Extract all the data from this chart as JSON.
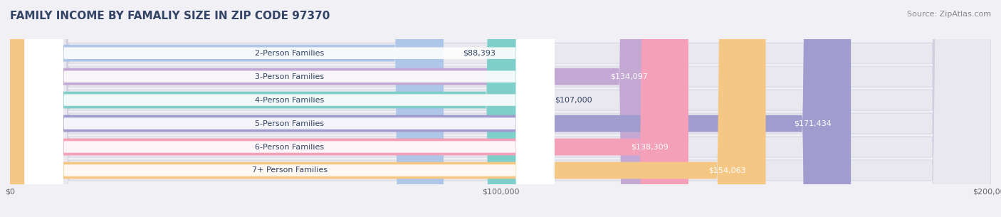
{
  "title": "FAMILY INCOME BY FAMALIY SIZE IN ZIP CODE 97370",
  "source": "Source: ZipAtlas.com",
  "categories": [
    "2-Person Families",
    "3-Person Families",
    "4-Person Families",
    "5-Person Families",
    "6-Person Families",
    "7+ Person Families"
  ],
  "values": [
    88393,
    134097,
    107000,
    171434,
    138309,
    154063
  ],
  "labels": [
    "$88,393",
    "$134,097",
    "$107,000",
    "$171,434",
    "$138,309",
    "$154,063"
  ],
  "bar_colors": [
    "#aec6e8",
    "#c4a8d4",
    "#7ecfca",
    "#a09cce",
    "#f4a0b8",
    "#f5c785"
  ],
  "bar_edge_colors": [
    "#8aa8cc",
    "#a888b8",
    "#5eb0ab",
    "#8080b0",
    "#e07898",
    "#e0a860"
  ],
  "label_colors": [
    "#555577",
    "#ffffff",
    "#555577",
    "#ffffff",
    "#ffffff",
    "#ffffff"
  ],
  "xlim": [
    0,
    200000
  ],
  "xticks": [
    0,
    100000,
    200000
  ],
  "xticklabels": [
    "$0",
    "$100,000",
    "$200,000"
  ],
  "background_color": "#f0f0f5",
  "bar_bg_color": "#e8e8ee",
  "title_color": "#334466",
  "source_color": "#888888",
  "title_fontsize": 11,
  "source_fontsize": 8,
  "label_fontsize": 8,
  "tick_fontsize": 8,
  "category_fontsize": 8
}
